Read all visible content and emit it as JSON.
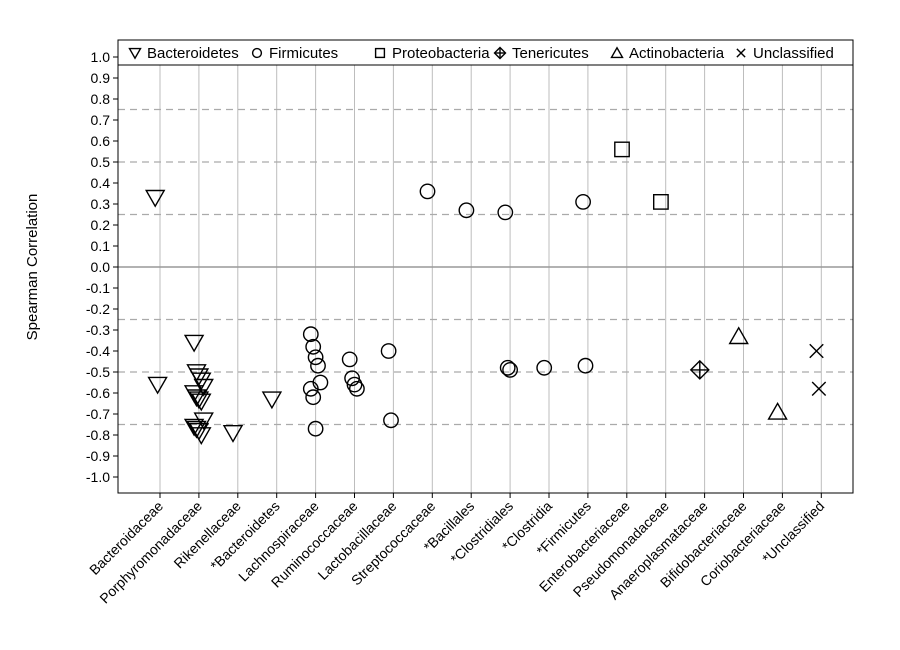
{
  "chart_data": {
    "type": "scatter",
    "title": "",
    "xlabel": "",
    "ylabel": "Spearman Correlation",
    "ylim": [
      -1.0,
      1.0
    ],
    "yticks": [
      "1.0",
      "0.9",
      "0.8",
      "0.7",
      "0.6",
      "0.5",
      "0.4",
      "0.3",
      "0.2",
      "0.1",
      "0.0",
      "-0.1",
      "-0.2",
      "-0.3",
      "-0.4",
      "-0.5",
      "-0.6",
      "-0.7",
      "-0.8",
      "-0.9",
      "-1.0"
    ],
    "grid": "vertical lines at each category",
    "reference_lines": {
      "solid": [
        0.0
      ],
      "dashed": [
        0.75,
        0.5,
        0.25,
        -0.25,
        -0.5,
        -0.75
      ]
    },
    "legend_position": "top",
    "categories": [
      "Bacteroidaceae",
      "Porphyromonadaceae",
      "Rikenellaceae",
      "*Bacteroidetes",
      "Lachnospiraceae",
      "Ruminococcaceae",
      "Lactobacillaceae",
      "Streptococcaceae",
      "*Bacillales",
      "*Clostridiales",
      "*Clostridia",
      "*Firmicutes",
      "Enterobacteriaceae",
      "Pseudomonadaceae",
      "Anaeroplasmataceae",
      "Bifidobacteriaceae",
      "Coriobacteriaceae",
      "*Unclassified"
    ],
    "series": [
      {
        "name": "Bacteroidetes",
        "marker": "triangle-down",
        "color": "#000000",
        "points": [
          {
            "x": "Bacteroidaceae",
            "y": 0.33
          },
          {
            "x": "Bacteroidaceae",
            "y": -0.56
          },
          {
            "x": "Porphyromonadaceae",
            "y": -0.36
          },
          {
            "x": "Porphyromonadaceae",
            "y": -0.5
          },
          {
            "x": "Porphyromonadaceae",
            "y": -0.52
          },
          {
            "x": "Porphyromonadaceae",
            "y": -0.54
          },
          {
            "x": "Porphyromonadaceae",
            "y": -0.57
          },
          {
            "x": "Porphyromonadaceae",
            "y": -0.6
          },
          {
            "x": "Porphyromonadaceae",
            "y": -0.62
          },
          {
            "x": "Porphyromonadaceae",
            "y": -0.63
          },
          {
            "x": "Porphyromonadaceae",
            "y": -0.64
          },
          {
            "x": "Porphyromonadaceae",
            "y": -0.73
          },
          {
            "x": "Porphyromonadaceae",
            "y": -0.76
          },
          {
            "x": "Porphyromonadaceae",
            "y": -0.77
          },
          {
            "x": "Porphyromonadaceae",
            "y": -0.78
          },
          {
            "x": "Porphyromonadaceae",
            "y": -0.8
          },
          {
            "x": "Rikenellaceae",
            "y": -0.79
          },
          {
            "x": "*Bacteroidetes",
            "y": -0.63
          }
        ]
      },
      {
        "name": "Firmicutes",
        "marker": "circle",
        "color": "#000000",
        "points": [
          {
            "x": "Lachnospiraceae",
            "y": -0.32
          },
          {
            "x": "Lachnospiraceae",
            "y": -0.38
          },
          {
            "x": "Lachnospiraceae",
            "y": -0.43
          },
          {
            "x": "Lachnospiraceae",
            "y": -0.47
          },
          {
            "x": "Lachnospiraceae",
            "y": -0.55
          },
          {
            "x": "Lachnospiraceae",
            "y": -0.58
          },
          {
            "x": "Lachnospiraceae",
            "y": -0.62
          },
          {
            "x": "Lachnospiraceae",
            "y": -0.77
          },
          {
            "x": "Ruminococcaceae",
            "y": -0.44
          },
          {
            "x": "Ruminococcaceae",
            "y": -0.53
          },
          {
            "x": "Ruminococcaceae",
            "y": -0.56
          },
          {
            "x": "Ruminococcaceae",
            "y": -0.58
          },
          {
            "x": "Lactobacillaceae",
            "y": -0.4
          },
          {
            "x": "Lactobacillaceae",
            "y": -0.73
          },
          {
            "x": "Streptococcaceae",
            "y": 0.36
          },
          {
            "x": "*Bacillales",
            "y": 0.27
          },
          {
            "x": "*Clostridiales",
            "y": 0.26
          },
          {
            "x": "*Clostridiales",
            "y": -0.48
          },
          {
            "x": "*Clostridiales",
            "y": -0.49
          },
          {
            "x": "*Clostridia",
            "y": -0.48
          },
          {
            "x": "*Firmicutes",
            "y": 0.31
          },
          {
            "x": "*Firmicutes",
            "y": -0.47
          }
        ]
      },
      {
        "name": "Proteobacteria",
        "marker": "square",
        "color": "#000000",
        "points": [
          {
            "x": "Enterobacteriaceae",
            "y": 0.56
          },
          {
            "x": "Pseudomonadaceae",
            "y": 0.31
          }
        ]
      },
      {
        "name": "Tenericutes",
        "marker": "diamond-plus",
        "color": "#000000",
        "points": [
          {
            "x": "Anaeroplasmataceae",
            "y": -0.49
          }
        ]
      },
      {
        "name": "Actinobacteria",
        "marker": "triangle-up",
        "color": "#000000",
        "points": [
          {
            "x": "Bifidobacteriaceae",
            "y": -0.33
          },
          {
            "x": "Coriobacteriaceae",
            "y": -0.69
          }
        ]
      },
      {
        "name": "Unclassified",
        "marker": "x",
        "color": "#000000",
        "points": [
          {
            "x": "*Unclassified",
            "y": -0.4
          },
          {
            "x": "*Unclassified",
            "y": -0.58
          }
        ]
      }
    ],
    "colors": {
      "marker": "#000000",
      "grid": "#bdbdbd",
      "dashed_line": "#aaaaaa",
      "zero_line": "#999999",
      "frame": "#000000"
    }
  }
}
